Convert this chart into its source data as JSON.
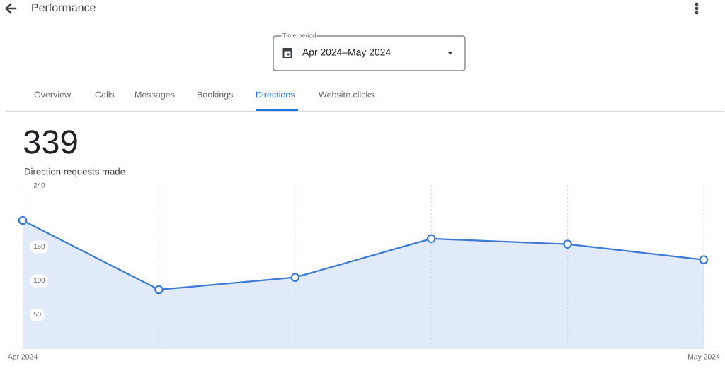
{
  "chart_data": {
    "type": "area",
    "title": "Performance",
    "categories": [
      "Apr 2024",
      null,
      null,
      null,
      null,
      "May 2024"
    ],
    "series": [
      {
        "color": "#3d7ad6",
        "values": [
          188,
          86,
          104,
          161,
          153,
          130
        ]
      }
    ],
    "ylim": [
      0,
      240
    ],
    "yticks": [
      50,
      100,
      150,
      240
    ],
    "grid": "x",
    "marker": "circle",
    "annotations": [
      "Time period",
      "Apr 2024–May 2024",
      "Overview",
      "Calls",
      "Messages",
      "Bookings",
      "Directions",
      "Website clicks",
      "339",
      "Direction requests made"
    ]
  }
}
